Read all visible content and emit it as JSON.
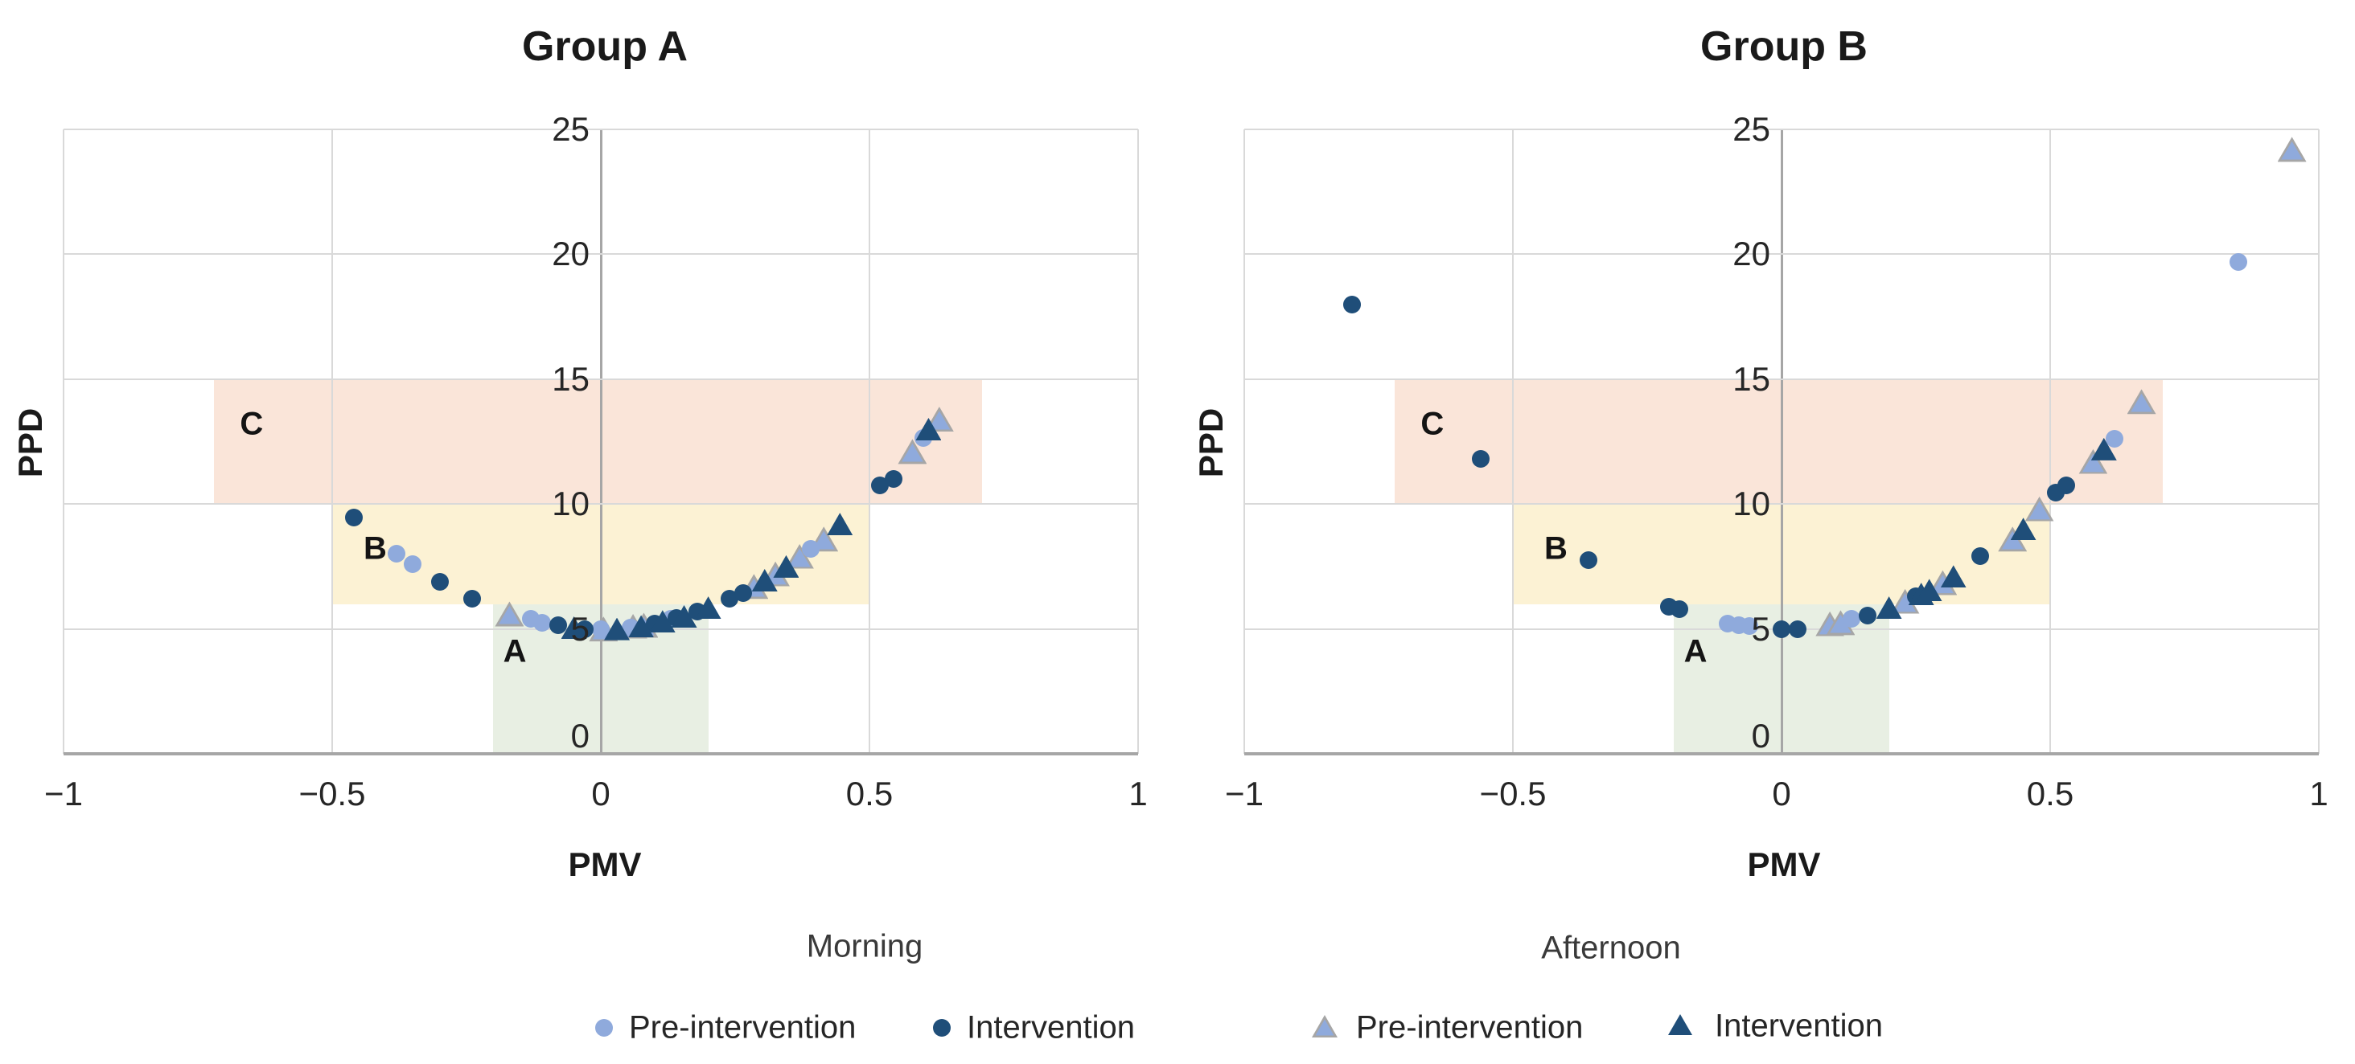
{
  "chart_data": {
    "type": "scatter",
    "figures": [
      {
        "title": "Group A",
        "xlabel": "PMV",
        "ylabel": "PPD",
        "xlim": [
          -1,
          1
        ],
        "ylim": [
          0,
          25
        ],
        "x_ticks": [
          "−1",
          "−0.5",
          "0",
          "0.5",
          "1"
        ],
        "x_tick_values": [
          -1,
          -0.5,
          0,
          0.5,
          1
        ],
        "y_ticks": [
          "25",
          "20",
          "15",
          "10",
          "5",
          "0"
        ],
        "y_tick_values": [
          25,
          20,
          15,
          10,
          5,
          0
        ],
        "series": [
          {
            "name": "Afternoon Pre-intervention",
            "marker": "triangle",
            "color_key": "light",
            "points": [
              [
                -0.17,
                5.6
              ],
              [
                0.005,
                5.0
              ],
              [
                0.06,
                5.1
              ],
              [
                0.08,
                5.15
              ],
              [
                0.285,
                6.7
              ],
              [
                0.325,
                7.2
              ],
              [
                0.37,
                7.9
              ],
              [
                0.415,
                8.6
              ],
              [
                0.58,
                12.1
              ],
              [
                0.63,
                13.4
              ]
            ]
          },
          {
            "name": "Morning Pre-intervention",
            "marker": "circle",
            "color_key": "light",
            "points": [
              [
                -0.38,
                8.0
              ],
              [
                -0.35,
                7.6
              ],
              [
                -0.13,
                5.4
              ],
              [
                -0.11,
                5.25
              ],
              [
                0.0,
                5.0
              ],
              [
                0.055,
                5.05
              ],
              [
                0.13,
                5.4
              ],
              [
                0.39,
                8.2
              ],
              [
                0.6,
                12.65
              ]
            ]
          },
          {
            "name": "Morning Intervention",
            "marker": "circle",
            "color_key": "dark",
            "points": [
              [
                -0.46,
                9.45
              ],
              [
                -0.3,
                6.9
              ],
              [
                -0.24,
                6.2
              ],
              [
                -0.08,
                5.15
              ],
              [
                -0.03,
                5.0
              ],
              [
                0.1,
                5.2
              ],
              [
                0.14,
                5.45
              ],
              [
                0.18,
                5.7
              ],
              [
                0.24,
                6.2
              ],
              [
                0.265,
                6.45
              ],
              [
                0.52,
                10.75
              ],
              [
                0.545,
                11.0
              ]
            ]
          },
          {
            "name": "Afternoon Intervention",
            "marker": "triangle",
            "color_key": "dark",
            "points": [
              [
                -0.05,
                5.05
              ],
              [
                0.03,
                5.0
              ],
              [
                0.075,
                5.1
              ],
              [
                0.115,
                5.3
              ],
              [
                0.155,
                5.5
              ],
              [
                0.2,
                5.85
              ],
              [
                0.305,
                6.95
              ],
              [
                0.345,
                7.5
              ],
              [
                0.445,
                9.2
              ],
              [
                0.61,
                13.0
              ]
            ]
          }
        ]
      },
      {
        "title": "Group B",
        "xlabel": "PMV",
        "ylabel": "PPD",
        "xlim": [
          -1,
          1
        ],
        "ylim": [
          0,
          25
        ],
        "x_ticks": [
          "−1",
          "−0.5",
          "0",
          "0.5",
          "1"
        ],
        "x_tick_values": [
          -1,
          -0.5,
          0,
          0.5,
          1
        ],
        "y_ticks": [
          "25",
          "20",
          "15",
          "10",
          "5",
          "0"
        ],
        "y_tick_values": [
          25,
          20,
          15,
          10,
          5,
          0
        ],
        "series": [
          {
            "name": "Afternoon Pre-intervention",
            "marker": "triangle",
            "color_key": "light",
            "points": [
              [
                0.09,
                5.2
              ],
              [
                0.11,
                5.25
              ],
              [
                0.23,
                6.1
              ],
              [
                0.3,
                6.85
              ],
              [
                0.43,
                8.6
              ],
              [
                0.48,
                9.8
              ],
              [
                0.58,
                11.7
              ],
              [
                0.67,
                14.1
              ],
              [
                0.95,
                24.2
              ]
            ]
          },
          {
            "name": "Morning Pre-intervention",
            "marker": "circle",
            "color_key": "light",
            "points": [
              [
                -0.1,
                5.2
              ],
              [
                -0.08,
                5.15
              ],
              [
                -0.06,
                5.1
              ],
              [
                0.13,
                5.4
              ],
              [
                0.62,
                12.6
              ],
              [
                0.85,
                19.7
              ]
            ]
          },
          {
            "name": "Morning Intervention",
            "marker": "circle",
            "color_key": "dark",
            "points": [
              [
                -0.8,
                18.0
              ],
              [
                -0.56,
                11.8
              ],
              [
                -0.36,
                7.75
              ],
              [
                -0.21,
                5.9
              ],
              [
                -0.19,
                5.8
              ],
              [
                0.0,
                5.0
              ],
              [
                0.03,
                5.0
              ],
              [
                0.16,
                5.55
              ],
              [
                0.25,
                6.3
              ],
              [
                0.37,
                7.9
              ],
              [
                0.51,
                10.45
              ],
              [
                0.53,
                10.75
              ]
            ]
          },
          {
            "name": "Afternoon Intervention",
            "marker": "triangle",
            "color_key": "dark",
            "points": [
              [
                0.2,
                5.85
              ],
              [
                0.26,
                6.4
              ],
              [
                0.275,
                6.55
              ],
              [
                0.32,
                7.1
              ],
              [
                0.45,
                9.0
              ],
              [
                0.6,
                12.2
              ]
            ]
          }
        ]
      }
    ],
    "zones": [
      {
        "label": "C",
        "x": [
          -0.72,
          0.71
        ],
        "y": [
          10,
          15
        ],
        "fill": "#FAE5D9",
        "label_at": [
          -0.65,
          13.2
        ]
      },
      {
        "label": "B",
        "x": [
          -0.5,
          0.5
        ],
        "y": [
          6,
          10
        ],
        "fill": "#FCF2D4",
        "label_at": [
          -0.42,
          8.2
        ]
      },
      {
        "label": "A",
        "x": [
          -0.2,
          0.2
        ],
        "y": [
          0,
          6
        ],
        "fill": "#E8EFE3",
        "label_at": [
          -0.16,
          4.1
        ]
      }
    ],
    "legend_position": "bottom"
  },
  "legend": {
    "groups": [
      {
        "title": "Morning",
        "items": [
          {
            "label": "Pre-intervention",
            "marker": "circle",
            "color_key": "light"
          },
          {
            "label": "Intervention",
            "marker": "circle",
            "color_key": "dark"
          }
        ]
      },
      {
        "title": "Afternoon",
        "items": [
          {
            "label": "Pre-intervention",
            "marker": "triangle",
            "color_key": "light"
          },
          {
            "label": "Intervention",
            "marker": "triangle",
            "color_key": "dark"
          }
        ]
      }
    ]
  },
  "colors": {
    "light": "#8FAADC",
    "dark": "#1F4E79",
    "triangle_border": "#A6A6A6",
    "gridline": "#D9D9D9",
    "axis": "#A6A6A6",
    "zone_c_fill": "#FAE5D9",
    "zone_b_fill": "#FCF2D4",
    "zone_a_fill": "#E8EFE3"
  }
}
